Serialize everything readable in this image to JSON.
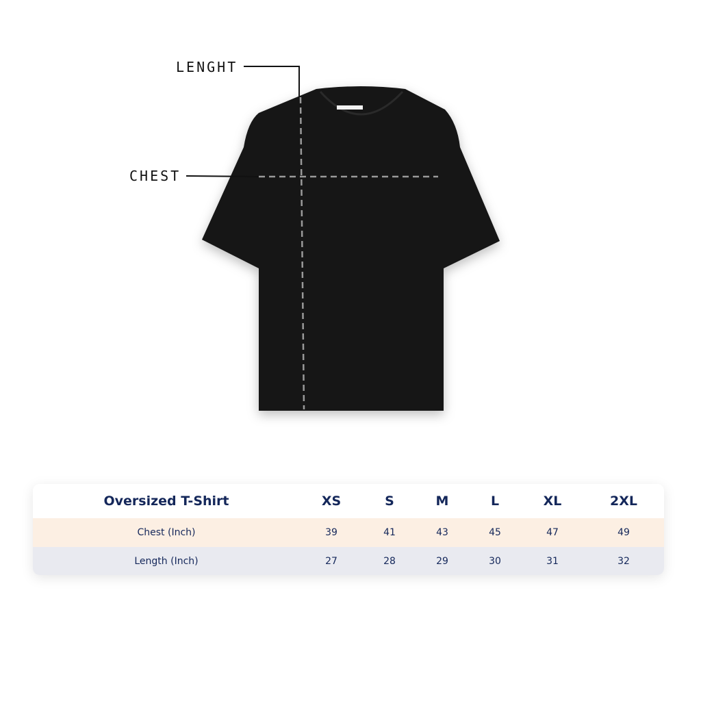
{
  "labels": {
    "length": "LENGHT",
    "chest": "CHEST"
  },
  "table": {
    "title": "Oversized T-Shirt",
    "sizes": [
      "XS",
      "S",
      "M",
      "L",
      "XL",
      "2XL"
    ],
    "rows": [
      {
        "label": "Chest (Inch)",
        "values": [
          "39",
          "41",
          "43",
          "45",
          "47",
          "49"
        ],
        "color": "#fcefe3"
      },
      {
        "label": "Length (Inch)",
        "values": [
          "27",
          "28",
          "29",
          "30",
          "31",
          "32"
        ],
        "color": "#e9eaf0"
      }
    ]
  },
  "colors": {
    "shirt": "#111111",
    "text": "#14275a"
  }
}
